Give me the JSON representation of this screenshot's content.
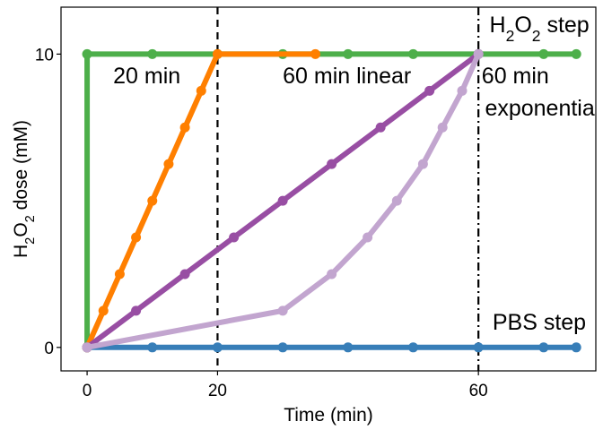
{
  "chart_data": {
    "type": "line",
    "xlabel": "Time (min)",
    "ylabel_parts": [
      "H",
      "2",
      "O",
      "2",
      " dose (mM)"
    ],
    "xlim": [
      -4,
      78
    ],
    "ylim": [
      -0.8,
      11.6
    ],
    "xticks": [
      0,
      20,
      60
    ],
    "yticks": [
      0,
      10
    ],
    "grid": false,
    "legend": "none",
    "vlines": [
      {
        "x": 20,
        "style": "dashed"
      },
      {
        "x": 60,
        "style": "dashdot"
      }
    ],
    "series": [
      {
        "color": "#4daf4a",
        "x": [
          0,
          0,
          10,
          20,
          30,
          40,
          50,
          60,
          70,
          75
        ],
        "y": [
          0,
          10,
          10,
          10,
          10,
          10,
          10,
          10,
          10,
          10
        ]
      },
      {
        "color": "#377eb8",
        "x": [
          0,
          10,
          20,
          30,
          40,
          50,
          60,
          70,
          75
        ],
        "y": [
          0,
          0,
          0,
          0,
          0,
          0,
          0,
          0,
          0
        ]
      },
      {
        "color": "#ff7f00",
        "x": [
          0,
          2.5,
          5,
          7.5,
          10,
          12.5,
          15,
          17.5,
          20,
          35
        ],
        "y": [
          0,
          1.25,
          2.5,
          3.75,
          5,
          6.25,
          7.5,
          8.75,
          10,
          10
        ]
      },
      {
        "color": "#984ea3",
        "x": [
          0,
          7.5,
          15,
          22.5,
          30,
          37.5,
          45,
          52.5,
          60
        ],
        "y": [
          0,
          1.25,
          2.5,
          3.75,
          5,
          6.25,
          7.5,
          8.75,
          10
        ]
      },
      {
        "color": "#c2a5cf",
        "x": [
          0,
          30,
          37.5,
          43,
          47.5,
          51.5,
          54.5,
          57.5,
          60
        ],
        "y": [
          0,
          1.25,
          2.5,
          3.75,
          5,
          6.25,
          7.5,
          8.75,
          10
        ]
      }
    ],
    "annotations": [
      {
        "id": "h2o2_step",
        "parts": [
          "H",
          "2",
          "O",
          "2",
          " step"
        ],
        "x": 77,
        "y": 10.75,
        "anchor": "end"
      },
      {
        "id": "twenty_min",
        "text": "20 min",
        "x": 4,
        "y": 9.0,
        "anchor": "start"
      },
      {
        "id": "sixty_linear",
        "text": "60 min linear",
        "x": 30,
        "y": 9.0,
        "anchor": "start"
      },
      {
        "id": "sixty_exp_1",
        "text": "60 min",
        "x": 60.5,
        "y": 9.0,
        "anchor": "start"
      },
      {
        "id": "sixty_exp_2",
        "text": "exponential",
        "x": 61,
        "y": 7.9,
        "anchor": "start"
      },
      {
        "id": "pbs_step",
        "text": "PBS step",
        "x": 76.5,
        "y": 0.6,
        "anchor": "end"
      }
    ]
  }
}
